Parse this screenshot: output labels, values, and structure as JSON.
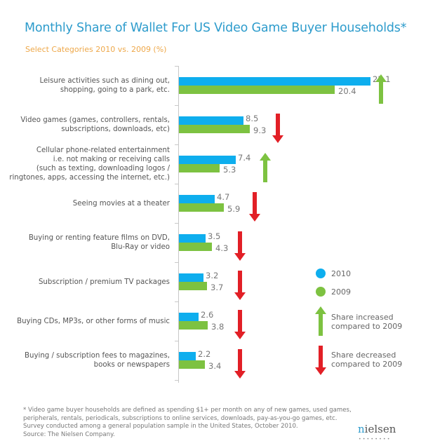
{
  "header": {
    "title": "Monthly Share of Wallet For US Video Game Buyer Households*",
    "subtitle": "Select Categories 2010 vs. 2009 (%)"
  },
  "colors": {
    "title": "#2e9ccc",
    "subtitle": "#eea84a",
    "series_2010": "#0eaeee",
    "series_2009": "#7dc241",
    "increase_arrow": "#7dc241",
    "decrease_arrow": "#e21f26"
  },
  "legend": {
    "s2010": "2010",
    "s2009": "2009",
    "increase": "Share increased\ncompared to 2009",
    "decrease": "Share decreased\ncompared to 2009"
  },
  "chart_data": {
    "type": "bar",
    "orientation": "horizontal",
    "title": "Monthly Share of Wallet For US Video Game Buyer Households*",
    "subtitle": "Select Categories 2010 vs. 2009 (%)",
    "xlabel": "",
    "ylabel": "",
    "grid": false,
    "legend_position": "right",
    "categories": [
      "Leisure activities such as dining out,\nshopping, going to a park, etc.",
      "Video games (games, controllers, rentals,\nsubscriptions, downloads, etc)",
      "Cellular phone-related entertainment\ni.e. not making or receiving calls\n(such as texting, downloading logos /\nringtones, apps, accessing the internet, etc.)",
      "Seeing movies at a theater",
      "Buying or renting feature films on DVD,\nBlu-Ray or video",
      "Subscription / premium TV packages",
      "Buying CDs, MP3s, or other forms of music",
      "Buying / subscription fees to magazines,\nbooks or newspapers"
    ],
    "series": [
      {
        "name": "2010",
        "values": [
          25.1,
          8.5,
          7.4,
          4.7,
          3.5,
          3.2,
          2.6,
          2.2
        ]
      },
      {
        "name": "2009",
        "values": [
          20.4,
          9.3,
          5.3,
          5.9,
          4.3,
          3.7,
          3.8,
          3.4
        ]
      }
    ],
    "change": [
      "increase",
      "decrease",
      "increase",
      "decrease",
      "decrease",
      "decrease",
      "decrease",
      "decrease"
    ],
    "value_labels": [
      [
        "25.1",
        "20.4"
      ],
      [
        "8.5",
        "9.3"
      ],
      [
        "7.4",
        "5.3"
      ],
      [
        "4.7",
        "5.9"
      ],
      [
        "3.5",
        "4.3"
      ],
      [
        "3.2",
        "3.7"
      ],
      [
        "2.6",
        "3.8"
      ],
      [
        "2.2",
        "3.4"
      ]
    ]
  },
  "footnote": {
    "lines": [
      "* Video game buyer households are defined as spending $1+ per month on any of new games, used games,",
      "peripherals, rentals, periodicals, subscriptions to online services, downloads, pay-as-you-go games, etc.",
      "Survey conducted among a general population sample in the United States, October 2010.",
      "Source: The Nielsen Company."
    ]
  },
  "logo": {
    "first": "n",
    "rest": "ielsen",
    "dots": "••••••••"
  }
}
